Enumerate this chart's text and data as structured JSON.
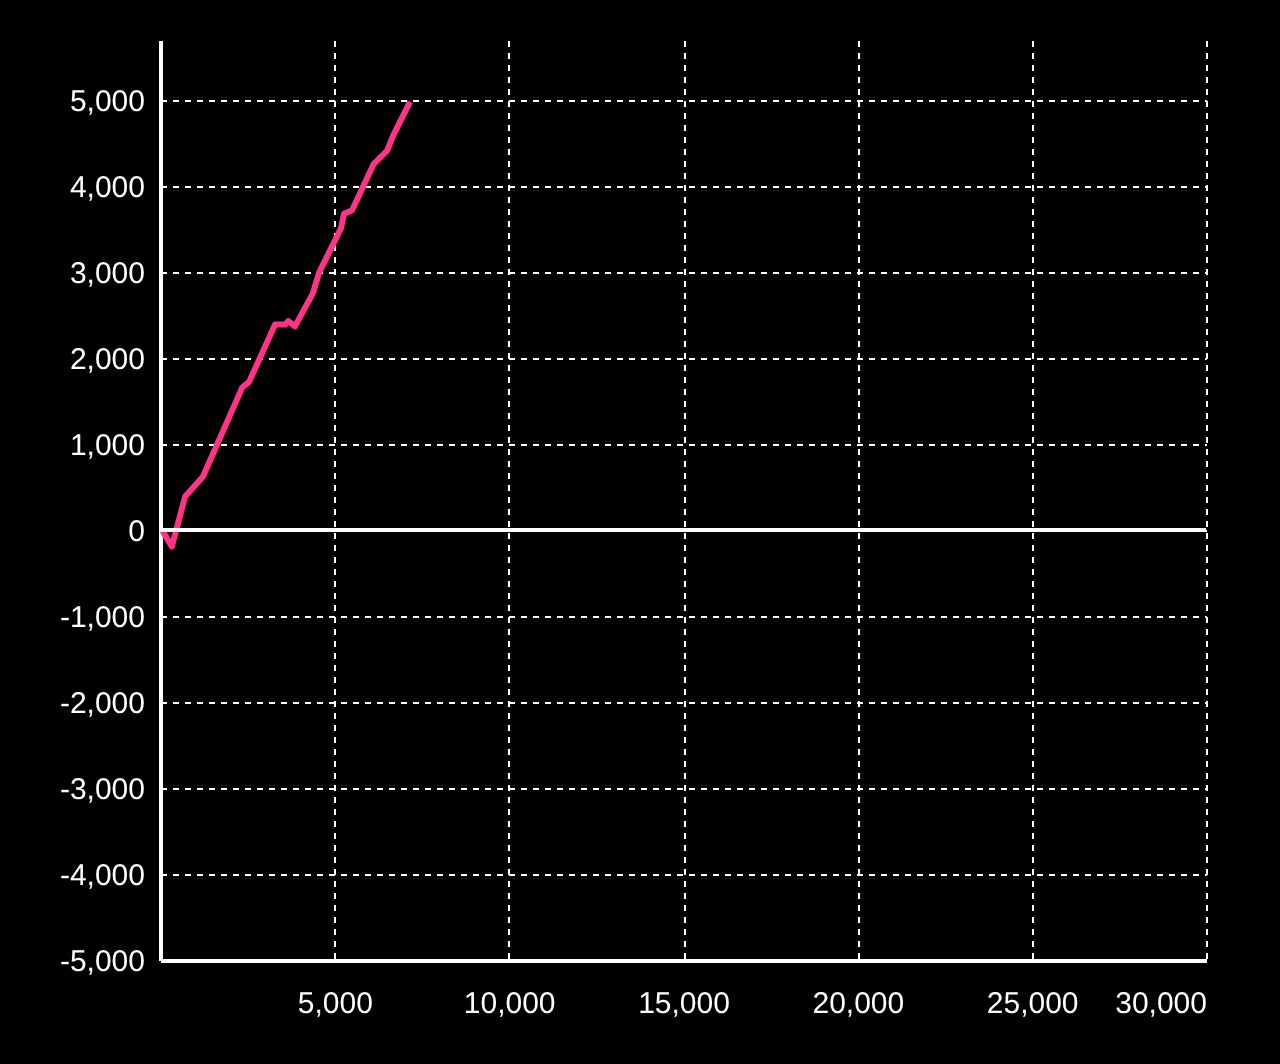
{
  "chart_data": {
    "type": "line",
    "x": [
      60,
      340,
      720,
      1230,
      2360,
      2550,
      3300,
      3580,
      3680,
      3870,
      4380,
      4570,
      5190,
      5280,
      5510,
      6130,
      6510,
      6700,
      7170
    ],
    "series": [
      {
        "color": "#ff3388",
        "values": [
          0,
          -190,
          390,
          620,
          1660,
          1720,
          2390,
          2390,
          2430,
          2370,
          2750,
          3000,
          3510,
          3680,
          3720,
          4260,
          4410,
          4600,
          4980
        ]
      }
    ],
    "xlim": [
      0,
      30000
    ],
    "xticks": [
      {
        "value": 5000,
        "label": "5,000"
      },
      {
        "value": 10000,
        "label": "10,000"
      },
      {
        "value": 15000,
        "label": "15,000"
      },
      {
        "value": 20000,
        "label": "20,000"
      },
      {
        "value": 25000,
        "label": "25,000"
      },
      {
        "value": 30000,
        "label": "30,000"
      }
    ],
    "ylim": [
      -5000,
      5700
    ],
    "yticks": [
      {
        "value": -5000,
        "label": "-5,000"
      },
      {
        "value": -4000,
        "label": "-4,000"
      },
      {
        "value": -3000,
        "label": "-3,000"
      },
      {
        "value": -2000,
        "label": "-2,000"
      },
      {
        "value": -1000,
        "label": "-1,000"
      },
      0,
      {
        "value": 1000,
        "label": "1,000"
      },
      {
        "value": 2000,
        "label": "2,000"
      },
      {
        "value": 3000,
        "label": "3,000"
      },
      {
        "value": 4000,
        "label": "4,000"
      },
      {
        "value": 5000,
        "label": "5,000"
      }
    ],
    "grid": true,
    "marker": "none",
    "line_style": "solid",
    "ref_lines": [
      {
        "axis": "y",
        "value": 0,
        "color": "#ffffff"
      }
    ]
  }
}
